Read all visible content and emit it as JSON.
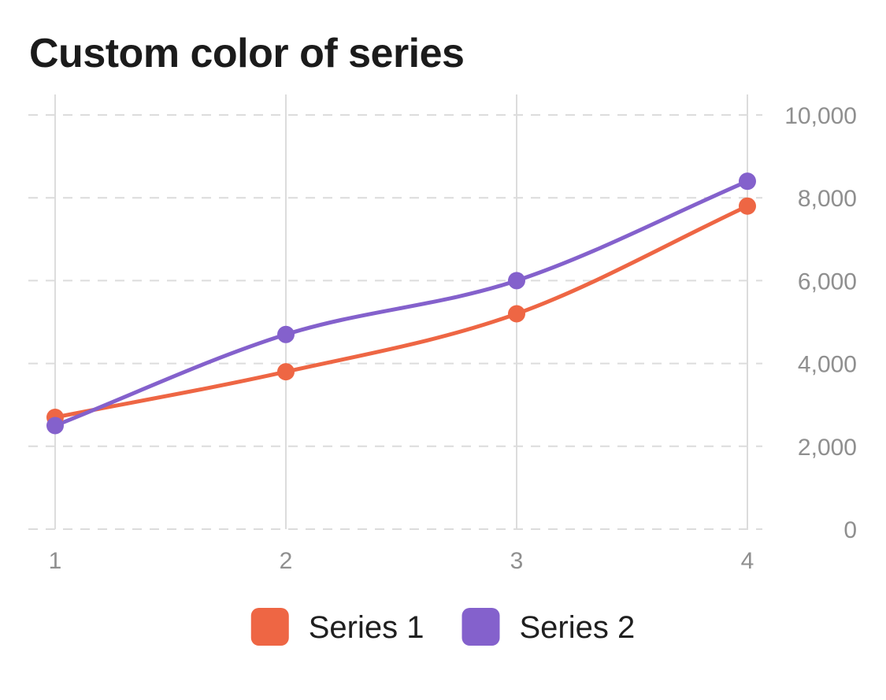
{
  "chart_data": {
    "type": "line",
    "title": "Custom color of series",
    "categories": [
      "1",
      "2",
      "3",
      "4"
    ],
    "x": [
      1,
      2,
      3,
      4
    ],
    "xlabel": "",
    "ylabel": "",
    "ylim": [
      0,
      10000
    ],
    "yticks": [
      "0",
      "2,000",
      "4,000",
      "6,000",
      "8,000",
      "10,000"
    ],
    "ytick_values": [
      0,
      2000,
      4000,
      6000,
      8000,
      10000
    ],
    "y_axis_position": "right",
    "grid": true,
    "legend": "bottom-center",
    "series": [
      {
        "name": "Series 1",
        "color": "#ee6644",
        "values": [
          2700,
          3800,
          5200,
          7800
        ]
      },
      {
        "name": "Series 2",
        "color": "#8461cc",
        "values": [
          2500,
          4700,
          6000,
          8400
        ]
      }
    ]
  }
}
